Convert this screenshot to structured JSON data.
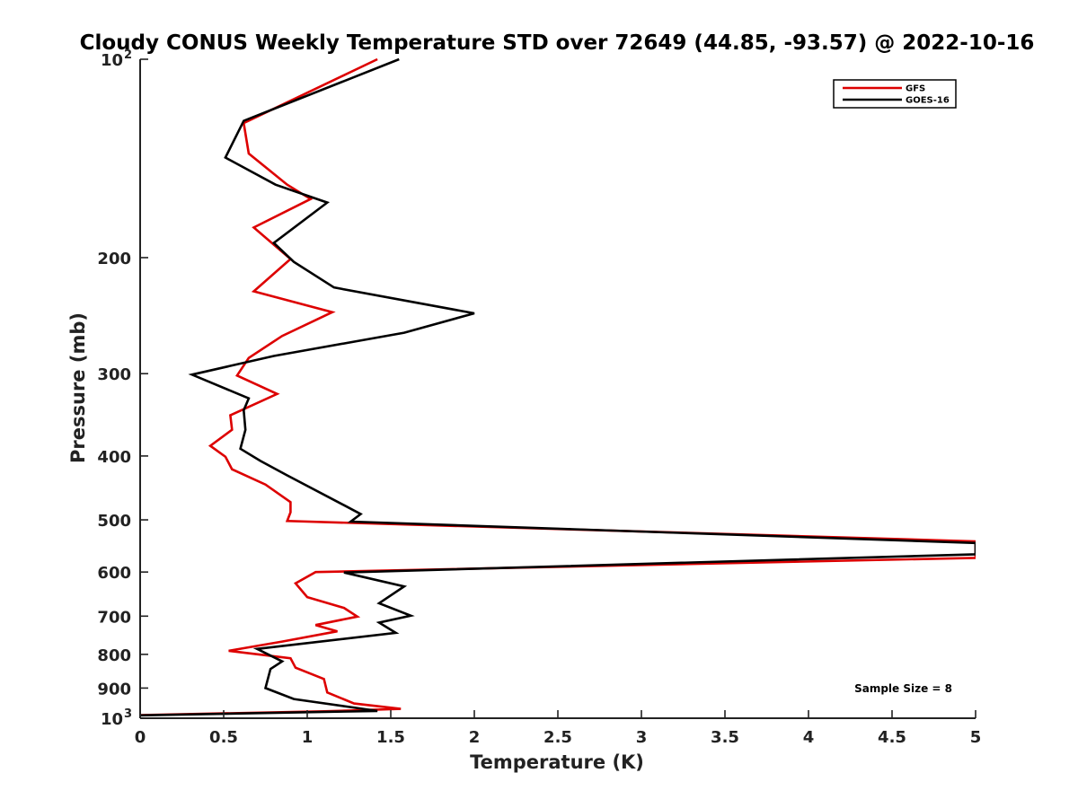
{
  "chart_data": {
    "type": "line",
    "title": "Cloudy CONUS Weekly Temperature STD over 72649 (44.85, -93.57) @ 2022-10-16",
    "xlabel": "Temperature (K)",
    "ylabel": "Pressure (mb)",
    "xlim": [
      0,
      5
    ],
    "ylim": [
      100,
      1000
    ],
    "y_scale": "log",
    "y_reversed": true,
    "x_ticks": [
      {
        "value": 0,
        "label": "0"
      },
      {
        "value": 0.5,
        "label": "0.5"
      },
      {
        "value": 1,
        "label": "1"
      },
      {
        "value": 1.5,
        "label": "1.5"
      },
      {
        "value": 2,
        "label": "2"
      },
      {
        "value": 2.5,
        "label": "2.5"
      },
      {
        "value": 3,
        "label": "3"
      },
      {
        "value": 3.5,
        "label": "3.5"
      },
      {
        "value": 4,
        "label": "4"
      },
      {
        "value": 4.5,
        "label": "4.5"
      },
      {
        "value": 5,
        "label": "5"
      }
    ],
    "y_ticks": [
      {
        "value": 100,
        "label": "10",
        "exp": "2"
      },
      {
        "value": 200,
        "label": "200"
      },
      {
        "value": 300,
        "label": "300"
      },
      {
        "value": 400,
        "label": "400"
      },
      {
        "value": 500,
        "label": "500"
      },
      {
        "value": 600,
        "label": "600"
      },
      {
        "value": 700,
        "label": "700"
      },
      {
        "value": 800,
        "label": "800"
      },
      {
        "value": 900,
        "label": "900"
      },
      {
        "value": 1000,
        "label": "10",
        "exp": "3"
      }
    ],
    "grid": false,
    "legend": "top-right",
    "series": [
      {
        "name": "GFS",
        "color": "#dd0000",
        "points": [
          [
            1.42,
            100
          ],
          [
            0.62,
            125
          ],
          [
            0.65,
            139
          ],
          [
            0.88,
            155
          ],
          [
            1.02,
            163
          ],
          [
            0.68,
            180
          ],
          [
            0.9,
            201
          ],
          [
            0.68,
            225
          ],
          [
            1.15,
            242
          ],
          [
            0.85,
            263
          ],
          [
            0.65,
            284
          ],
          [
            0.58,
            302
          ],
          [
            0.82,
            322
          ],
          [
            0.54,
            347
          ],
          [
            0.55,
            365
          ],
          [
            0.42,
            386
          ],
          [
            0.51,
            401
          ],
          [
            0.55,
            419
          ],
          [
            0.75,
            442
          ],
          [
            0.9,
            470
          ],
          [
            0.9,
            487
          ],
          [
            0.88,
            502
          ],
          [
            5.0,
            539
          ],
          [
            5.0,
            571
          ],
          [
            1.05,
            600
          ],
          [
            0.93,
            624
          ],
          [
            1.0,
            655
          ],
          [
            1.22,
            680
          ],
          [
            1.3,
            701
          ],
          [
            1.05,
            722
          ],
          [
            1.18,
            738
          ],
          [
            0.85,
            765
          ],
          [
            0.53,
            790
          ],
          [
            0.9,
            811
          ],
          [
            0.93,
            838
          ],
          [
            1.1,
            872
          ],
          [
            1.12,
            914
          ],
          [
            1.28,
            950
          ],
          [
            1.56,
            968
          ],
          [
            1.1,
            976
          ],
          [
            0.0,
            989
          ]
        ]
      },
      {
        "name": "GOES-16",
        "color": "#000000",
        "points": [
          [
            1.55,
            100
          ],
          [
            0.62,
            124
          ],
          [
            0.51,
            141
          ],
          [
            0.81,
            155
          ],
          [
            1.12,
            165
          ],
          [
            0.8,
            190
          ],
          [
            0.92,
            203
          ],
          [
            1.16,
            222
          ],
          [
            2.0,
            243
          ],
          [
            1.58,
            260
          ],
          [
            0.8,
            282
          ],
          [
            0.31,
            301
          ],
          [
            0.65,
            327
          ],
          [
            0.62,
            341
          ],
          [
            0.63,
            365
          ],
          [
            0.6,
            390
          ],
          [
            0.72,
            407
          ],
          [
            0.88,
            428
          ],
          [
            1.22,
            475
          ],
          [
            1.32,
            490
          ],
          [
            1.26,
            503
          ],
          [
            5.0,
            542
          ],
          [
            5.0,
            564
          ],
          [
            1.22,
            601
          ],
          [
            1.58,
            631
          ],
          [
            1.43,
            669
          ],
          [
            1.62,
            699
          ],
          [
            1.43,
            716
          ],
          [
            1.53,
            742
          ],
          [
            0.7,
            785
          ],
          [
            0.85,
            820
          ],
          [
            0.78,
            842
          ],
          [
            0.75,
            900
          ],
          [
            0.92,
            935
          ],
          [
            1.42,
            975
          ],
          [
            0.0,
            990
          ]
        ]
      }
    ],
    "annotation": "Sample Size = 8"
  }
}
